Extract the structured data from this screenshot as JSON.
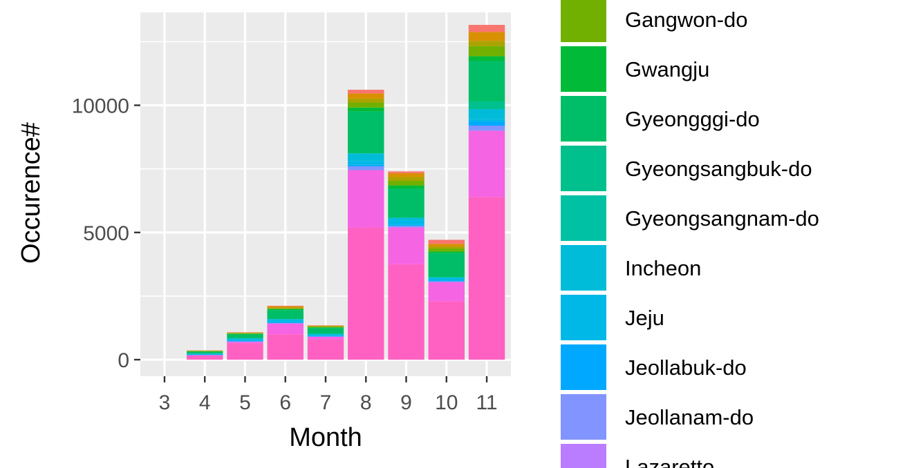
{
  "chart_data": {
    "type": "bar",
    "stacked": true,
    "xlabel": "Month",
    "ylabel": "Occurence#",
    "categories": [
      "3",
      "4",
      "5",
      "6",
      "7",
      "8",
      "9",
      "10",
      "11"
    ],
    "ylim": [
      -650,
      13650
    ],
    "yticks": [
      0,
      5000,
      10000
    ],
    "grid": true,
    "legend_position": "right",
    "series": [
      {
        "color": "#FF61C3",
        "values": [
          0,
          150,
          650,
          1000,
          800,
          5200,
          3750,
          2300,
          6400
        ]
      },
      {
        "color": "#F564E3",
        "values": [
          0,
          30,
          50,
          420,
          100,
          2250,
          1450,
          750,
          2600
        ]
      },
      {
        "name": "Lazaretto",
        "color": "#BB7DFF",
        "values": [
          0,
          0,
          0,
          0,
          0,
          0,
          0,
          0,
          0
        ]
      },
      {
        "name": "Jeollanam-do",
        "color": "#8294FF",
        "values": [
          0,
          0,
          20,
          20,
          10,
          150,
          60,
          30,
          200
        ]
      },
      {
        "name": "Jeollabuk-do",
        "color": "#00A9FF",
        "values": [
          0,
          10,
          30,
          30,
          20,
          60,
          40,
          30,
          150
        ]
      },
      {
        "name": "Jeju",
        "color": "#00B8E7",
        "values": [
          0,
          30,
          50,
          80,
          50,
          150,
          180,
          80,
          100
        ]
      },
      {
        "name": "Incheon",
        "color": "#00BCD8",
        "values": [
          0,
          20,
          40,
          50,
          40,
          300,
          100,
          50,
          400
        ]
      },
      {
        "name": "Gyeongsangnam-do",
        "color": "#00C1A3",
        "values": [
          0,
          0,
          0,
          0,
          0,
          0,
          0,
          0,
          0
        ]
      },
      {
        "name": "Gyeongsangbuk-do",
        "color": "#00C08D",
        "values": [
          0,
          0,
          0,
          0,
          0,
          0,
          0,
          0,
          300
        ]
      },
      {
        "name": "Gyeongggi-do",
        "color": "#00BE67",
        "values": [
          0,
          70,
          150,
          350,
          220,
          1650,
          1150,
          950,
          1600
        ]
      },
      {
        "name": "Gwangju",
        "color": "#00BA38",
        "values": [
          0,
          15,
          25,
          40,
          30,
          150,
          120,
          60,
          180
        ]
      },
      {
        "name": "Gangwon-do",
        "color": "#72B000",
        "values": [
          0,
          15,
          25,
          30,
          30,
          200,
          180,
          120,
          400
        ]
      },
      {
        "color": "#ABA300",
        "values": [
          0,
          10,
          15,
          20,
          20,
          150,
          150,
          80,
          200
        ]
      },
      {
        "color": "#D89000",
        "values": [
          0,
          10,
          15,
          60,
          20,
          200,
          150,
          100,
          350
        ]
      },
      {
        "color": "#F8766D",
        "values": [
          0,
          5,
          10,
          20,
          10,
          150,
          70,
          160,
          280
        ]
      }
    ]
  }
}
